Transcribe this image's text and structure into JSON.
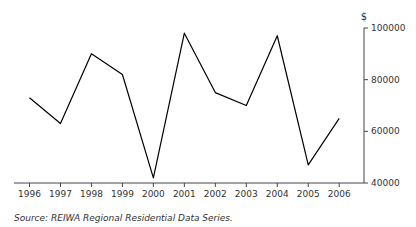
{
  "chart_data": {
    "type": "line",
    "x": [
      1996,
      1997,
      1998,
      1999,
      2000,
      2001,
      2002,
      2003,
      2004,
      2005,
      2006
    ],
    "values": [
      73000,
      63000,
      90000,
      82000,
      42000,
      98000,
      75000,
      70000,
      97000,
      47000,
      65000
    ],
    "color": "#000000",
    "xlim": [
      1995.5,
      2006.8
    ],
    "xticks": [
      1996,
      1997,
      1998,
      1999,
      2000,
      2001,
      2002,
      2003,
      2004,
      2005,
      2006
    ],
    "ylim": [
      40000,
      100000
    ],
    "yticks": [
      40000,
      60000,
      80000,
      100000
    ],
    "ylabel": "$",
    "source": "Source: REIWA Regional Residential Data Series.",
    "grid": false
  }
}
